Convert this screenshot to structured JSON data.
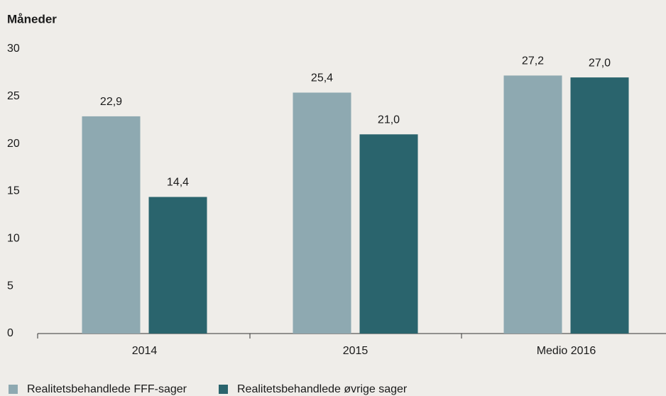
{
  "chart_data": {
    "type": "bar",
    "y_axis_label": "Måneder",
    "categories": [
      "2014",
      "2015",
      "Medio 2016"
    ],
    "series": [
      {
        "name": "Realitetsbehandlede FFF-sager",
        "color": "#8ea9b1",
        "values": [
          22.9,
          25.4,
          27.2
        ],
        "value_labels": [
          "22,9",
          "25,4",
          "27,2"
        ]
      },
      {
        "name": "Realitetsbehandlede øvrige sager",
        "color": "#2a646d",
        "values": [
          14.4,
          21.0,
          27.0
        ],
        "value_labels": [
          "14,4",
          "21,0",
          "27,0"
        ]
      }
    ],
    "ylim": [
      0,
      30
    ],
    "yticks": [
      0,
      5,
      10,
      15,
      20,
      25,
      30
    ],
    "grid": false,
    "legend": "bottom"
  }
}
